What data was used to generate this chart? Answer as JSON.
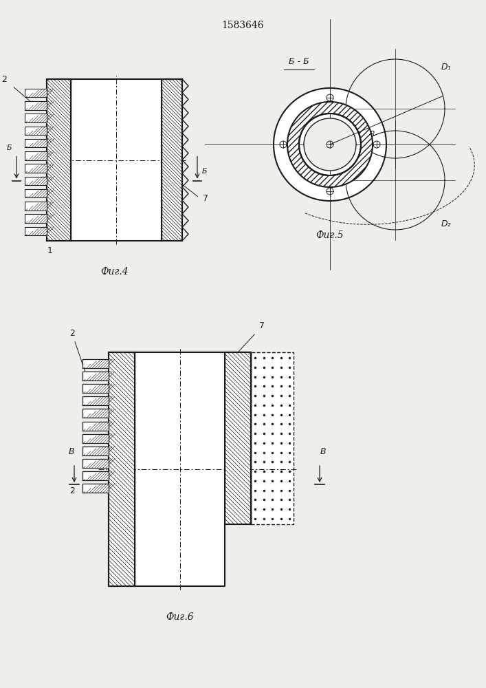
{
  "title": "1583646",
  "title_fontsize": 11,
  "fig4_caption": "Фиг.4",
  "fig5_caption": "Фиг.5",
  "fig6_caption": "Фиг.6",
  "bg_color": "#f0eeea",
  "line_color": "#1a1a1a"
}
